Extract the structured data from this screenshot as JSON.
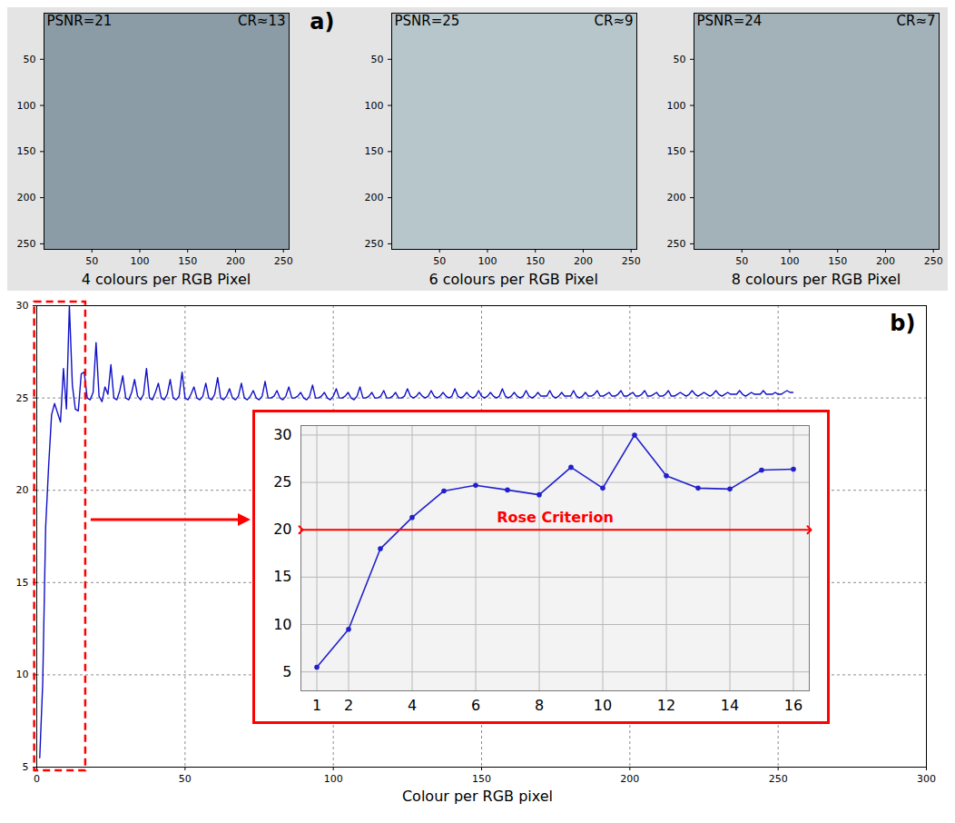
{
  "chart_data": [
    {
      "type": "image",
      "panel_label": "a)",
      "annotations": [
        "PSNR=21",
        "CR≈13"
      ],
      "caption": "4 colours per RGB Pixel",
      "color": "#8c9ca6",
      "xlim": [
        0,
        256
      ],
      "ylim": [
        256,
        0
      ],
      "xticks": [
        50,
        100,
        150,
        200,
        250
      ],
      "yticks": [
        50,
        100,
        150,
        200,
        250
      ]
    },
    {
      "type": "image",
      "annotations": [
        "PSNR=25",
        "CR≈9"
      ],
      "caption": "6 colours per RGB Pixel",
      "color": "#b7c6cb",
      "xlim": [
        0,
        256
      ],
      "ylim": [
        256,
        0
      ],
      "xticks": [
        50,
        100,
        150,
        200,
        250
      ],
      "yticks": [
        50,
        100,
        150,
        200,
        250
      ]
    },
    {
      "type": "image",
      "annotations": [
        "PSNR=24",
        "CR≈7"
      ],
      "caption": "8 colours per RGB Pixel",
      "color": "#a3b1b9",
      "xlim": [
        0,
        256
      ],
      "ylim": [
        256,
        0
      ],
      "xticks": [
        50,
        100,
        150,
        200,
        250
      ],
      "yticks": [
        50,
        100,
        150,
        200,
        250
      ]
    },
    {
      "type": "line",
      "panel_label": "b)",
      "xlabel": "Colour per RGB pixel",
      "color": "#1010c8",
      "grid": true,
      "line_style": "solid",
      "xlim": [
        0,
        300
      ],
      "ylim": [
        5,
        30
      ],
      "xticks": [
        0,
        50,
        100,
        150,
        200,
        250,
        300
      ],
      "yticks": [
        5,
        10,
        15,
        20,
        25,
        30
      ],
      "x": [
        1,
        2,
        3,
        4,
        5,
        6,
        7,
        8,
        9,
        10,
        11,
        12,
        13,
        14,
        15,
        16,
        17,
        18,
        19,
        20,
        21,
        22,
        23,
        24,
        25,
        26,
        27,
        28,
        29,
        30,
        31,
        32,
        33,
        34,
        35,
        36,
        37,
        38,
        39,
        40,
        41,
        42,
        43,
        44,
        45,
        46,
        47,
        48,
        49,
        50,
        51,
        52,
        53,
        54,
        55,
        56,
        57,
        58,
        59,
        60,
        61,
        62,
        63,
        64,
        65,
        66,
        67,
        68,
        69,
        70,
        71,
        72,
        73,
        74,
        75,
        76,
        77,
        78,
        79,
        80,
        81,
        82,
        83,
        84,
        85,
        86,
        87,
        88,
        89,
        90,
        91,
        92,
        93,
        94,
        95,
        96,
        97,
        98,
        99,
        100,
        101,
        102,
        103,
        104,
        105,
        106,
        107,
        108,
        109,
        110,
        111,
        112,
        113,
        114,
        115,
        116,
        117,
        118,
        119,
        120,
        121,
        122,
        123,
        124,
        125,
        126,
        127,
        128,
        129,
        130,
        131,
        132,
        133,
        134,
        135,
        136,
        137,
        138,
        139,
        140,
        141,
        142,
        143,
        144,
        145,
        146,
        147,
        148,
        149,
        150,
        151,
        152,
        153,
        154,
        155,
        156,
        157,
        158,
        159,
        160,
        161,
        162,
        163,
        164,
        165,
        166,
        167,
        168,
        169,
        170,
        171,
        172,
        173,
        174,
        175,
        176,
        177,
        178,
        179,
        180,
        181,
        182,
        183,
        184,
        185,
        186,
        187,
        188,
        189,
        190,
        191,
        192,
        193,
        194,
        195,
        196,
        197,
        198,
        199,
        200,
        201,
        202,
        203,
        204,
        205,
        206,
        207,
        208,
        209,
        210,
        211,
        212,
        213,
        214,
        215,
        216,
        217,
        218,
        219,
        220,
        221,
        222,
        223,
        224,
        225,
        226,
        227,
        228,
        229,
        230,
        231,
        232,
        233,
        234,
        235,
        236,
        237,
        238,
        239,
        240,
        241,
        242,
        243,
        244,
        245,
        246,
        247,
        248,
        249,
        250,
        251,
        252,
        253,
        254,
        255
      ],
      "values": [
        5.5,
        9.5,
        18.0,
        21.3,
        24.1,
        24.7,
        24.2,
        23.7,
        26.6,
        24.4,
        30.0,
        25.7,
        24.4,
        24.3,
        26.3,
        26.4,
        25.0,
        24.9,
        25.3,
        28.0,
        25.1,
        24.8,
        25.6,
        25.2,
        26.8,
        25.0,
        24.9,
        25.4,
        26.2,
        25.0,
        24.9,
        25.3,
        26.0,
        25.1,
        24.9,
        25.2,
        26.6,
        25.0,
        24.9,
        25.3,
        25.8,
        25.0,
        24.9,
        25.2,
        26.0,
        25.0,
        24.9,
        25.1,
        26.4,
        25.0,
        24.9,
        25.2,
        25.6,
        25.0,
        24.9,
        25.1,
        25.8,
        25.0,
        24.9,
        25.2,
        26.1,
        25.0,
        24.9,
        25.1,
        25.5,
        25.0,
        24.9,
        25.1,
        25.8,
        25.0,
        24.9,
        25.1,
        25.4,
        25.0,
        24.9,
        25.1,
        25.9,
        25.0,
        25.0,
        25.1,
        25.4,
        25.0,
        24.9,
        25.1,
        25.6,
        25.0,
        25.0,
        25.1,
        25.3,
        25.0,
        24.9,
        25.1,
        25.7,
        25.0,
        25.0,
        25.1,
        25.3,
        25.0,
        24.9,
        25.1,
        25.5,
        25.0,
        25.0,
        25.1,
        25.3,
        25.0,
        24.9,
        25.1,
        25.6,
        25.0,
        25.0,
        25.1,
        25.3,
        25.0,
        25.0,
        25.1,
        25.4,
        25.0,
        25.0,
        25.1,
        25.3,
        25.0,
        25.0,
        25.1,
        25.5,
        25.1,
        25.0,
        25.1,
        25.3,
        25.1,
        25.0,
        25.1,
        25.4,
        25.1,
        25.0,
        25.1,
        25.3,
        25.1,
        25.0,
        25.1,
        25.5,
        25.1,
        25.0,
        25.1,
        25.3,
        25.1,
        25.0,
        25.1,
        25.4,
        25.1,
        25.0,
        25.1,
        25.3,
        25.1,
        25.0,
        25.1,
        25.5,
        25.1,
        25.0,
        25.1,
        25.3,
        25.1,
        25.0,
        25.1,
        25.4,
        25.1,
        25.0,
        25.1,
        25.3,
        25.1,
        25.1,
        25.1,
        25.4,
        25.1,
        25.0,
        25.1,
        25.3,
        25.1,
        25.1,
        25.1,
        25.4,
        25.1,
        25.0,
        25.1,
        25.3,
        25.1,
        25.1,
        25.2,
        25.4,
        25.1,
        25.1,
        25.2,
        25.3,
        25.1,
        25.1,
        25.2,
        25.4,
        25.1,
        25.1,
        25.2,
        25.3,
        25.1,
        25.1,
        25.2,
        25.4,
        25.1,
        25.1,
        25.2,
        25.3,
        25.1,
        25.1,
        25.2,
        25.4,
        25.1,
        25.1,
        25.2,
        25.3,
        25.2,
        25.1,
        25.2,
        25.4,
        25.2,
        25.1,
        25.2,
        25.3,
        25.2,
        25.1,
        25.2,
        25.4,
        25.2,
        25.1,
        25.2,
        25.3,
        25.2,
        25.2,
        25.2,
        25.4,
        25.2,
        25.1,
        25.2,
        25.3,
        25.2,
        25.2,
        25.2,
        25.4,
        25.2,
        25.2,
        25.2,
        25.3,
        25.2,
        25.2,
        25.3,
        25.4,
        25.3,
        25.3
      ]
    },
    {
      "type": "line",
      "color": "#2020cc",
      "marker": "dot",
      "grid": true,
      "xlim": [
        0.5,
        16.5
      ],
      "ylim": [
        3,
        31
      ],
      "xticks": [
        1,
        2,
        4,
        6,
        8,
        10,
        12,
        14,
        16
      ],
      "yticks": [
        5,
        10,
        15,
        20,
        25,
        30
      ],
      "x": [
        1,
        2,
        3,
        4,
        5,
        6,
        7,
        8,
        9,
        10,
        11,
        12,
        13,
        14,
        15,
        16
      ],
      "values": [
        5.5,
        9.5,
        18.0,
        21.3,
        24.1,
        24.7,
        24.2,
        23.7,
        26.6,
        24.4,
        30.0,
        25.7,
        24.4,
        24.3,
        26.3,
        26.4
      ],
      "annotations": [
        {
          "text": "Rose Criterion",
          "y": 20,
          "color": "#ff0000"
        }
      ]
    }
  ]
}
